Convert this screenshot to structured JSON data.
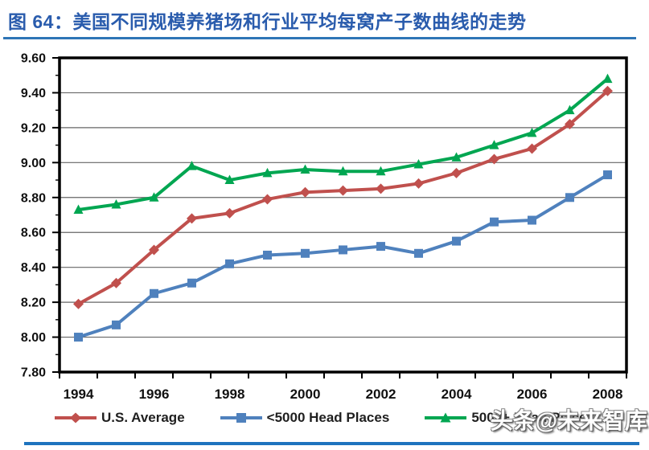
{
  "header": {
    "title": "图 64：美国不同规模养猪场和行业平均每窝产子数曲线的走势"
  },
  "watermark": {
    "text": "头条@未来智库"
  },
  "chart_data": {
    "type": "line",
    "title": "图 64：美国不同规模养猪场和行业平均每窝产子数曲线的走势",
    "categories": [
      1994,
      1995,
      1996,
      1997,
      1998,
      1999,
      2000,
      2001,
      2002,
      2003,
      2004,
      2005,
      2006,
      2007,
      2008
    ],
    "x_tick_labels": [
      "1994",
      "1996",
      "1998",
      "2000",
      "2002",
      "2004",
      "2006",
      "2008"
    ],
    "y_tick_labels": [
      "9.60",
      "9.40",
      "9.20",
      "9.00",
      "8.80",
      "8.60",
      "8.40",
      "8.20",
      "8.00",
      "7.80"
    ],
    "ylim": [
      7.8,
      9.6
    ],
    "y_major_step": 0.2,
    "y_minor_step": 0.1,
    "grid": true,
    "legend_position": "bottom",
    "series": [
      {
        "name": "U.S. Average",
        "color": "#c0504d",
        "marker": "diamond",
        "values": [
          8.19,
          8.31,
          8.5,
          8.68,
          8.71,
          8.79,
          8.83,
          8.84,
          8.85,
          8.88,
          8.94,
          9.02,
          9.08,
          9.22,
          9.41
        ]
      },
      {
        "name": "<5000 Head Places",
        "color": "#4f81bd",
        "marker": "square",
        "values": [
          8.0,
          8.07,
          8.25,
          8.31,
          8.42,
          8.47,
          8.48,
          8.5,
          8.52,
          8.48,
          8.55,
          8.66,
          8.67,
          8.8,
          8.93
        ]
      },
      {
        "name": "5000+ Head Places",
        "color": "#00a651",
        "marker": "triangle",
        "values": [
          8.73,
          8.76,
          8.8,
          8.98,
          8.9,
          8.94,
          8.96,
          8.95,
          8.95,
          8.99,
          9.03,
          9.1,
          9.17,
          9.3,
          9.48
        ]
      }
    ],
    "axis_color": "#000000",
    "grid_color": "#666666"
  }
}
